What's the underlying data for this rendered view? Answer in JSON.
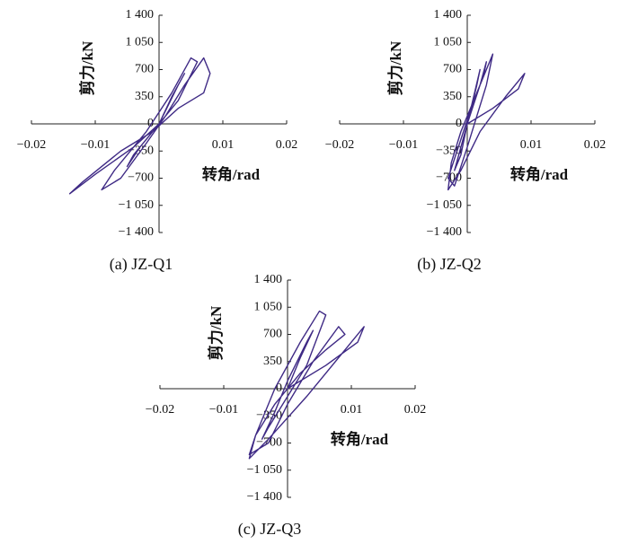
{
  "chart_data": [
    {
      "type": "line",
      "title": "(a) JZ-Q1",
      "x_label": "转角/rad",
      "y_label": "剪力/kN",
      "xlim": [
        -0.02,
        0.02
      ],
      "ylim": [
        -1400,
        1400
      ],
      "xticks": [
        {
          "value": -0.02,
          "label": "−0.02"
        },
        {
          "value": -0.01,
          "label": "−0.01"
        },
        0.01,
        0.02
      ],
      "yticks": [
        {
          "value": 1400,
          "label": "1 400"
        },
        {
          "value": 1050,
          "label": "1 050"
        },
        700,
        350,
        0,
        {
          "value": -350,
          "label": "−350"
        },
        {
          "value": -700,
          "label": "−700"
        },
        {
          "value": -1050,
          "label": "−1 050"
        },
        {
          "value": -1400,
          "label": "−1 400"
        }
      ],
      "series": [
        {
          "color": "#3f2a85",
          "x": [
            0,
            0.002,
            0.004,
            0.003,
            0,
            -0.003,
            -0.005,
            -0.004,
            0,
            0.003,
            0.006,
            0.005,
            0.002,
            -0.002,
            -0.007,
            -0.009,
            -0.006,
            -0.002,
            0.001,
            0.004,
            0.007,
            0.008,
            0.007,
            0.003,
            -0.001,
            -0.006,
            -0.012,
            -0.014,
            -0.01,
            -0.004,
            0
          ],
          "values": [
            0,
            350,
            650,
            500,
            0,
            -300,
            -550,
            -400,
            0,
            300,
            800,
            850,
            400,
            -100,
            -600,
            -850,
            -700,
            -250,
            100,
            500,
            850,
            650,
            400,
            200,
            -100,
            -350,
            -750,
            -900,
            -650,
            -300,
            0
          ]
        }
      ]
    },
    {
      "type": "line",
      "title": "(b) JZ-Q2",
      "x_label": "转角/rad",
      "y_label": "剪力/kN",
      "xlim": [
        -0.02,
        0.02
      ],
      "ylim": [
        -1400,
        1400
      ],
      "xticks": [
        {
          "value": -0.02,
          "label": "−0.02"
        },
        {
          "value": -0.01,
          "label": "−0.01"
        },
        0.01,
        0.02
      ],
      "yticks": [
        {
          "value": 1400,
          "label": "1 400"
        },
        {
          "value": 1050,
          "label": "1 050"
        },
        700,
        350,
        0,
        {
          "value": -350,
          "label": "−350"
        },
        {
          "value": -700,
          "label": "−700"
        },
        {
          "value": -1050,
          "label": "−1 050"
        },
        {
          "value": -1400,
          "label": "−1 400"
        }
      ],
      "series": [
        {
          "color": "#3f2a85",
          "x": [
            0,
            0.001,
            0.002,
            0.0015,
            0,
            -0.001,
            -0.002,
            -0.001,
            0,
            0.002,
            0.003,
            0.0025,
            0.001,
            -0.001,
            -0.003,
            -0.002,
            0,
            0.003,
            0.004,
            0.003,
            0.001,
            -0.001,
            -0.0025,
            -0.003,
            -0.001,
            0.002,
            0.006,
            0.009,
            0.008,
            0.004,
            0
          ],
          "values": [
            0,
            350,
            700,
            500,
            0,
            -300,
            -600,
            -400,
            0,
            500,
            800,
            600,
            300,
            -200,
            -700,
            -800,
            -300,
            500,
            900,
            700,
            300,
            -100,
            -500,
            -850,
            -600,
            -100,
            350,
            650,
            450,
            200,
            0
          ]
        }
      ]
    },
    {
      "type": "line",
      "title": "(c) JZ-Q3",
      "x_label": "转角/rad",
      "y_label": "剪力/kN",
      "xlim": [
        -0.02,
        0.02
      ],
      "ylim": [
        -1400,
        1400
      ],
      "xticks": [
        {
          "value": -0.02,
          "label": "−0.02"
        },
        {
          "value": -0.01,
          "label": "−0.01"
        },
        0.01,
        0.02
      ],
      "yticks": [
        {
          "value": 1400,
          "label": "1 400"
        },
        {
          "value": 1050,
          "label": "1 050"
        },
        700,
        350,
        0,
        {
          "value": -350,
          "label": "−350"
        },
        {
          "value": -700,
          "label": "−700"
        },
        {
          "value": -1050,
          "label": "−1 050"
        },
        {
          "value": -1400,
          "label": "−1 400"
        }
      ],
      "series": [
        {
          "color": "#3f2a85",
          "x": [
            0,
            0.002,
            0.004,
            0.003,
            0,
            -0.002,
            -0.004,
            -0.003,
            0,
            0.003,
            0.006,
            0.005,
            0.002,
            -0.002,
            -0.005,
            -0.006,
            -0.003,
            0,
            0.004,
            0.008,
            0.009,
            0.006,
            0.002,
            -0.002,
            -0.005,
            -0.006,
            -0.003,
            0.003,
            0.009,
            0.012,
            0.011,
            0.006,
            0
          ],
          "values": [
            0,
            400,
            750,
            600,
            100,
            -300,
            -650,
            -500,
            -100,
            300,
            950,
            1000,
            600,
            0,
            -600,
            -850,
            -700,
            -200,
            350,
            800,
            700,
            500,
            200,
            -200,
            -600,
            -900,
            -650,
            -100,
            500,
            800,
            600,
            300,
            0
          ]
        }
      ]
    }
  ]
}
